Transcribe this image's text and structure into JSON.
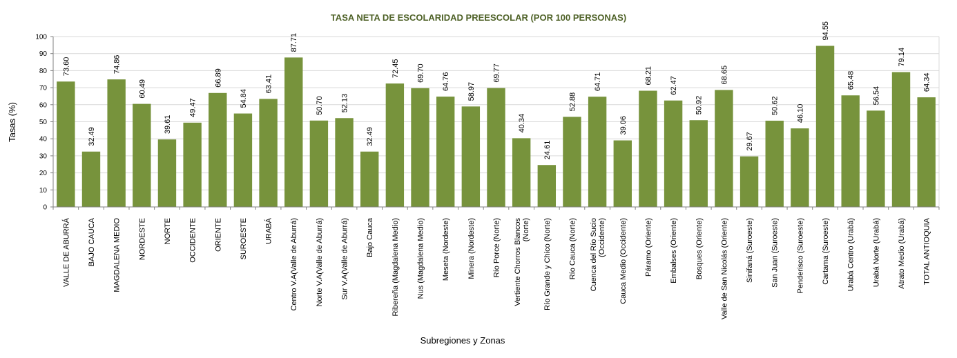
{
  "chart_data": {
    "type": "bar",
    "title": "TASA NETA DE ESCOLARIDAD PREESCOLAR (POR 100 PERSONAS)",
    "xlabel": "Subregiones y Zonas",
    "ylabel": "Tasas (%)",
    "ylim": [
      0,
      100
    ],
    "yticks": [
      0,
      10,
      20,
      30,
      40,
      50,
      60,
      70,
      80,
      90,
      100
    ],
    "grid": true,
    "bar_color": "#77933c",
    "title_color": "#4f6228",
    "categories": [
      [
        "VALLE DE ABURRÁ"
      ],
      [
        "BAJO CAUCA"
      ],
      [
        "MAGDALENA MEDIO"
      ],
      [
        "NORDESTE"
      ],
      [
        "NORTE"
      ],
      [
        "OCCIDENTE"
      ],
      [
        "ORIENTE"
      ],
      [
        "SUROESTE"
      ],
      [
        "URABÁ"
      ],
      [
        "Centro V.A(Valle de Aburrá)"
      ],
      [
        "Norte V.A(Valle de Aburrá)"
      ],
      [
        "Sur V.A(Valle de Aburrá)"
      ],
      [
        "Bajo Cauca"
      ],
      [
        "Ribereña  (Magdalena Medio)"
      ],
      [
        "Nus  (Magdalena Medio)"
      ],
      [
        "Meseta  (Nordeste)"
      ],
      [
        "Minera  (Nordeste)"
      ],
      [
        "Río Porce   (Norte)"
      ],
      [
        "Vertiente Chorros Blancos",
        "(Norte)"
      ],
      [
        "Río Grande y Chico  (Norte)"
      ],
      [
        "Río Cauca  (Norte)"
      ],
      [
        "Cuenca del Río Sucio",
        "(Occidente)"
      ],
      [
        "Cauca Medio  (Occidente)"
      ],
      [
        "Páramo   (Oriente)"
      ],
      [
        "Embalses  (Oriente)"
      ],
      [
        "Bosques  (Oriente)"
      ],
      [
        "Valle de San Nicolás  (Oriente)"
      ],
      [
        "Sinifaná  (Suroeste)"
      ],
      [
        "San Juan  (Suroeste)"
      ],
      [
        "Penderisco  (Suroeste)"
      ],
      [
        "Cartama  (Suroeste)"
      ],
      [
        "Urabá Centro  (Urabá)"
      ],
      [
        "Urabá Norte  (Urabá)"
      ],
      [
        "Atrato Medio  (Urabá)"
      ],
      [
        "TOTAL ANTIOQUIA"
      ]
    ],
    "values": [
      73.6,
      32.49,
      74.86,
      60.49,
      39.61,
      49.47,
      66.89,
      54.84,
      63.41,
      87.71,
      50.7,
      52.13,
      32.49,
      72.45,
      69.7,
      64.76,
      58.97,
      69.77,
      40.34,
      24.61,
      52.88,
      64.71,
      39.06,
      68.21,
      62.47,
      50.92,
      68.65,
      29.67,
      50.62,
      46.1,
      94.55,
      65.48,
      56.54,
      79.14,
      64.34
    ],
    "labels": [
      "73.60",
      "32.49",
      "74.86",
      "60.49",
      "39.61",
      "49.47",
      "66.89",
      "54.84",
      "63.41",
      "87.71",
      "50.70",
      "52.13",
      "32.49",
      "72.45",
      "69.70",
      "64.76",
      "58.97",
      "69.77",
      "40.34",
      "24.61",
      "52.88",
      "64.71",
      "39.06",
      "68.21",
      "62.47",
      "50.92",
      "68.65",
      "29.67",
      "50.62",
      "46.10",
      "94.55",
      "65.48",
      "56.54",
      "79.14",
      "64.34"
    ]
  }
}
